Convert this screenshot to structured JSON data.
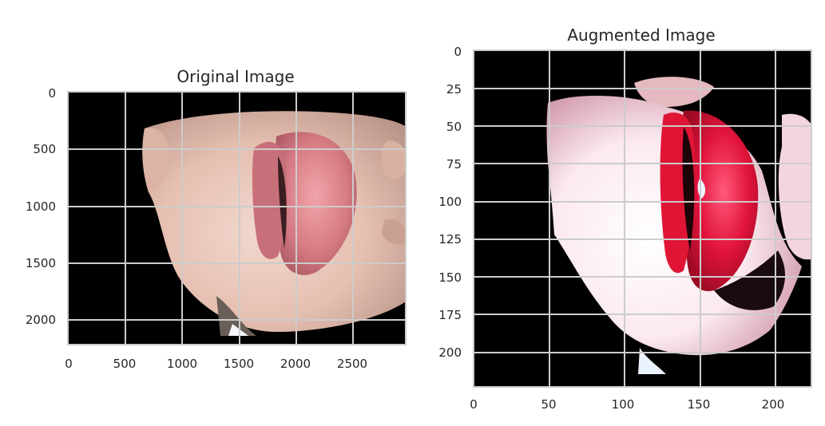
{
  "figures": [
    {
      "title": "Original Image",
      "x_ticks": [
        "0",
        "500",
        "1000",
        "1500",
        "2000",
        "2500"
      ],
      "y_ticks": [
        "0",
        "500",
        "1000",
        "1500",
        "2000"
      ]
    },
    {
      "title": "Augmented Image",
      "x_ticks": [
        "0",
        "50",
        "100",
        "150",
        "200"
      ],
      "y_ticks": [
        "0",
        "25",
        "50",
        "75",
        "100",
        "125",
        "150",
        "175",
        "200"
      ]
    }
  ],
  "colors": {
    "background": "#000000",
    "grid": "#cccccc",
    "text": "#262626",
    "skin": "#e8c3b3",
    "lips": "#d9828a",
    "augmented_lips": "#e0143c"
  }
}
